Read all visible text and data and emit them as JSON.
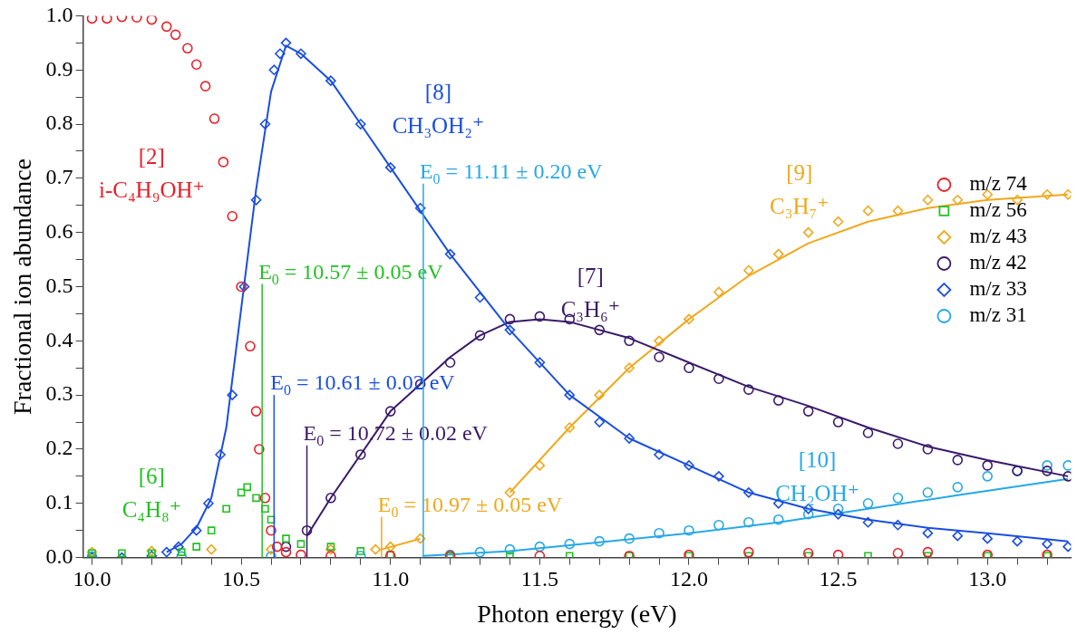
{
  "chart_data": {
    "type": "scatter",
    "xlabel": "Photon energy (eV)",
    "ylabel": "Fractional ion abundance",
    "xlim": [
      9.97,
      13.28
    ],
    "ylim": [
      0,
      1.0
    ],
    "xticks": [
      {
        "value": 10.0,
        "label": "10.0"
      },
      {
        "value": 10.1,
        "label": null
      },
      {
        "value": 10.2,
        "label": null
      },
      {
        "value": 10.3,
        "label": null
      },
      {
        "value": 10.4,
        "label": null
      },
      {
        "value": 10.5,
        "label": "10.5"
      },
      {
        "value": 10.6,
        "label": null
      },
      {
        "value": 10.7,
        "label": null
      },
      {
        "value": 10.8,
        "label": null
      },
      {
        "value": 10.9,
        "label": null
      },
      {
        "value": 11.0,
        "label": "11.0"
      },
      {
        "value": 11.1,
        "label": null
      },
      {
        "value": 11.2,
        "label": null
      },
      {
        "value": 11.3,
        "label": null
      },
      {
        "value": 11.4,
        "label": null
      },
      {
        "value": 11.5,
        "label": "11.5"
      },
      {
        "value": 11.6,
        "label": null
      },
      {
        "value": 11.7,
        "label": null
      },
      {
        "value": 11.8,
        "label": null
      },
      {
        "value": 11.9,
        "label": null
      },
      {
        "value": 12.0,
        "label": "12.0"
      },
      {
        "value": 12.1,
        "label": null
      },
      {
        "value": 12.2,
        "label": null
      },
      {
        "value": 12.3,
        "label": null
      },
      {
        "value": 12.4,
        "label": null
      },
      {
        "value": 12.5,
        "label": "12.5"
      },
      {
        "value": 12.6,
        "label": null
      },
      {
        "value": 12.7,
        "label": null
      },
      {
        "value": 12.8,
        "label": null
      },
      {
        "value": 12.9,
        "label": null
      },
      {
        "value": 13.0,
        "label": "13.0"
      },
      {
        "value": 13.1,
        "label": null
      },
      {
        "value": 13.2,
        "label": null
      }
    ],
    "yticks": [
      {
        "value": 0,
        "label": "0.0"
      },
      {
        "value": 0.05,
        "label": null
      },
      {
        "value": 0.1,
        "label": "0.1"
      },
      {
        "value": 0.15,
        "label": null
      },
      {
        "value": 0.2,
        "label": "0.2"
      },
      {
        "value": 0.25,
        "label": null
      },
      {
        "value": 0.3,
        "label": "0.3"
      },
      {
        "value": 0.35,
        "label": null
      },
      {
        "value": 0.4,
        "label": "0.4"
      },
      {
        "value": 0.45,
        "label": null
      },
      {
        "value": 0.5,
        "label": "0.5"
      },
      {
        "value": 0.55,
        "label": null
      },
      {
        "value": 0.6,
        "label": "0.6"
      },
      {
        "value": 0.65,
        "label": null
      },
      {
        "value": 0.7,
        "label": "0.7"
      },
      {
        "value": 0.75,
        "label": null
      },
      {
        "value": 0.8,
        "label": "0.8"
      },
      {
        "value": 0.85,
        "label": null
      },
      {
        "value": 0.9,
        "label": "0.9"
      },
      {
        "value": 0.95,
        "label": null
      },
      {
        "value": 1.0,
        "label": "1.0"
      }
    ],
    "grid": false,
    "legend": "right",
    "series": [
      {
        "name": "m/z 74",
        "color": "#e8202a",
        "marker": "circle",
        "x": [
          10.0,
          10.05,
          10.1,
          10.15,
          10.2,
          10.25,
          10.28,
          10.32,
          10.35,
          10.38,
          10.41,
          10.44,
          10.47,
          10.5,
          10.53,
          10.55,
          10.56,
          10.58,
          10.6,
          10.62,
          10.65,
          10.7,
          10.8,
          11.0,
          11.2,
          11.5,
          11.8,
          12.0,
          12.2,
          12.4,
          12.5,
          12.7,
          12.8,
          13.0,
          13.2
        ],
        "values": [
          0.995,
          0.995,
          0.998,
          0.997,
          0.993,
          0.98,
          0.965,
          0.94,
          0.91,
          0.87,
          0.81,
          0.73,
          0.63,
          0.5,
          0.39,
          0.27,
          0.2,
          0.11,
          0.05,
          0.02,
          0.01,
          0.005,
          0.003,
          0.003,
          0.003,
          0.003,
          0.003,
          0.005,
          0.01,
          0.008,
          0.005,
          0.008,
          0.01,
          0.005,
          0.005
        ]
      },
      {
        "name": "m/z 56",
        "color": "#22c122",
        "marker": "square",
        "x": [
          10.0,
          10.1,
          10.2,
          10.3,
          10.35,
          10.4,
          10.45,
          10.5,
          10.52,
          10.55,
          10.58,
          10.6,
          10.65,
          10.7,
          10.8,
          10.9,
          11.0,
          11.2,
          11.4,
          11.6,
          11.8,
          12.0,
          12.2,
          12.4,
          12.6,
          12.8,
          13.0,
          13.2
        ],
        "values": [
          0.008,
          0.008,
          0.008,
          0.01,
          0.02,
          0.05,
          0.09,
          0.12,
          0.13,
          0.11,
          0.09,
          0.07,
          0.035,
          0.025,
          0.02,
          0.012,
          0.005,
          0.003,
          0.003,
          0.003,
          0.003,
          0.003,
          0.003,
          0.003,
          0.003,
          0.003,
          0.003,
          0.003
        ]
      },
      {
        "name": "m/z 43",
        "color": "#f0a81c",
        "marker": "diamond",
        "x": [
          10.0,
          10.2,
          10.4,
          10.6,
          10.8,
          10.95,
          11.0,
          11.1,
          11.2,
          11.3,
          11.4,
          11.5,
          11.6,
          11.7,
          11.8,
          11.9,
          12.0,
          12.1,
          12.2,
          12.3,
          12.4,
          12.5,
          12.6,
          12.7,
          12.8,
          12.9,
          13.0,
          13.1,
          13.2,
          13.27
        ],
        "values": [
          0.01,
          0.012,
          0.015,
          0.015,
          0.015,
          0.015,
          0.02,
          0.035,
          null,
          null,
          0.12,
          0.17,
          0.24,
          0.3,
          0.35,
          0.4,
          0.44,
          0.49,
          0.53,
          0.56,
          0.6,
          0.62,
          0.64,
          0.64,
          0.66,
          0.66,
          0.67,
          0.66,
          0.67,
          0.67
        ]
      },
      {
        "name": "m/z 42",
        "color": "#3a1a6a",
        "marker": "circle",
        "x": [
          10.65,
          10.72,
          10.8,
          10.9,
          11.0,
          11.1,
          11.2,
          11.3,
          11.4,
          11.5,
          11.6,
          11.7,
          11.8,
          11.9,
          12.0,
          12.1,
          12.2,
          12.3,
          12.4,
          12.5,
          12.6,
          12.7,
          12.8,
          12.9,
          13.0,
          13.1,
          13.2,
          13.27
        ],
        "values": [
          0.02,
          0.05,
          0.11,
          0.19,
          0.27,
          0.32,
          0.36,
          0.41,
          0.44,
          0.445,
          0.44,
          0.42,
          0.4,
          0.37,
          0.35,
          0.33,
          0.31,
          0.29,
          0.27,
          0.25,
          0.23,
          0.21,
          0.2,
          0.18,
          0.17,
          0.16,
          0.16,
          0.15
        ]
      },
      {
        "name": "m/z 33",
        "color": "#1a4ee0",
        "marker": "diamond",
        "x": [
          10.0,
          10.1,
          10.2,
          10.25,
          10.29,
          10.35,
          10.39,
          10.43,
          10.47,
          10.51,
          10.55,
          10.58,
          10.61,
          10.63,
          10.65,
          10.7,
          10.8,
          10.9,
          11.0,
          11.1,
          11.2,
          11.3,
          11.4,
          11.5,
          11.6,
          11.7,
          11.8,
          11.9,
          12.0,
          12.1,
          12.2,
          12.3,
          12.4,
          12.5,
          12.6,
          12.7,
          12.8,
          12.9,
          13.0,
          13.1,
          13.2,
          13.27
        ],
        "values": [
          0.0,
          0.0,
          0.003,
          0.01,
          0.02,
          0.05,
          0.1,
          0.19,
          0.3,
          0.5,
          0.66,
          0.8,
          0.9,
          0.93,
          0.95,
          0.93,
          0.88,
          0.8,
          0.72,
          0.645,
          0.56,
          0.48,
          0.42,
          0.36,
          0.3,
          0.25,
          0.22,
          0.19,
          0.17,
          0.15,
          0.12,
          0.1,
          0.09,
          0.08,
          0.065,
          0.06,
          0.045,
          0.04,
          0.035,
          0.03,
          0.025,
          0.02
        ]
      },
      {
        "name": "m/z 31",
        "color": "#26a8e8",
        "marker": "circle",
        "x": [
          10.0,
          10.3,
          10.6,
          10.9,
          11.2,
          11.3,
          11.4,
          11.5,
          11.6,
          11.7,
          11.8,
          11.9,
          12.0,
          12.1,
          12.2,
          12.3,
          12.4,
          12.5,
          12.6,
          12.7,
          12.8,
          12.9,
          13.0,
          13.1,
          13.2,
          13.27
        ],
        "values": [
          0.002,
          0.002,
          0.002,
          0.003,
          0.005,
          0.01,
          0.015,
          0.02,
          0.025,
          0.03,
          0.035,
          0.045,
          0.05,
          0.06,
          0.065,
          0.07,
          0.08,
          0.09,
          0.1,
          0.11,
          0.12,
          0.13,
          0.15,
          0.16,
          0.17,
          0.17
        ]
      },
      {
        "type": "line",
        "color": "#1a4ee0",
        "marker": "none",
        "x": [
          10.25,
          10.3,
          10.35,
          10.4,
          10.45,
          10.5,
          10.55,
          10.6,
          10.65,
          10.7,
          10.8,
          10.9,
          11.0,
          11.2,
          11.4,
          11.6,
          11.8,
          12.0,
          12.2,
          12.4,
          12.6,
          12.8,
          13.0,
          13.27
        ],
        "values": [
          0.01,
          0.025,
          0.055,
          0.11,
          0.24,
          0.46,
          0.68,
          0.86,
          0.945,
          0.93,
          0.88,
          0.8,
          0.72,
          0.56,
          0.42,
          0.3,
          0.22,
          0.17,
          0.12,
          0.09,
          0.07,
          0.055,
          0.045,
          0.03
        ]
      },
      {
        "type": "line",
        "color": "#3a1a6a",
        "marker": "none",
        "x": [
          10.72,
          10.8,
          10.9,
          11.0,
          11.1,
          11.2,
          11.3,
          11.4,
          11.5,
          11.6,
          11.8,
          12.0,
          12.2,
          12.4,
          12.6,
          12.8,
          13.0,
          13.27
        ],
        "values": [
          0.04,
          0.11,
          0.19,
          0.27,
          0.32,
          0.37,
          0.41,
          0.435,
          0.44,
          0.435,
          0.405,
          0.36,
          0.315,
          0.28,
          0.24,
          0.205,
          0.18,
          0.15
        ]
      },
      {
        "type": "line",
        "color": "#f0a81c",
        "marker": "none",
        "x": [
          10.97,
          11.1,
          11.25,
          11.4,
          11.6,
          11.8,
          12.0,
          12.2,
          12.4,
          12.6,
          12.8,
          13.0,
          13.27
        ],
        "values": [
          0.015,
          0.035,
          null,
          0.12,
          0.24,
          0.35,
          0.44,
          0.52,
          0.58,
          0.62,
          0.645,
          0.66,
          0.67
        ]
      },
      {
        "type": "line",
        "color": "#26a8e8",
        "marker": "none",
        "x": [
          11.11,
          11.4,
          11.7,
          12.0,
          12.3,
          12.6,
          12.9,
          13.27
        ],
        "values": [
          0.003,
          0.012,
          0.028,
          0.045,
          0.065,
          0.09,
          0.115,
          0.145
        ]
      }
    ],
    "ref_lines": [
      {
        "axis": "x",
        "value": 10.57,
        "color": "#22c122",
        "label": "E$_{0}$ = 10.57 ± 0.05 eV"
      },
      {
        "axis": "x",
        "value": 10.61,
        "color": "#1a4ee0",
        "label": "E$_{0}$ = 10.61 ± 0.02 eV"
      },
      {
        "axis": "x",
        "value": 10.72,
        "color": "#3a1a6a",
        "label": "E$_{0}$ = 10.72 ± 0.02 eV"
      },
      {
        "axis": "x",
        "value": 10.97,
        "color": "#f0a81c",
        "label": "E$_{0}$ = 10.97 ± 0.05 eV"
      },
      {
        "axis": "x",
        "value": 11.11,
        "color": "#26a8e8",
        "label": "E$_{0}$ = 11.11 ± 0.20 eV"
      }
    ],
    "annotations": [
      "[2]\ni-C₄H₉OH⁺",
      "[8]\nCH₃OH₂⁺",
      "[9]\nC₃H₇⁺",
      "[7]\nC₃H₆⁺",
      "[6]\nC₄H₈⁺",
      "[10]\nCH₂OH⁺"
    ]
  }
}
